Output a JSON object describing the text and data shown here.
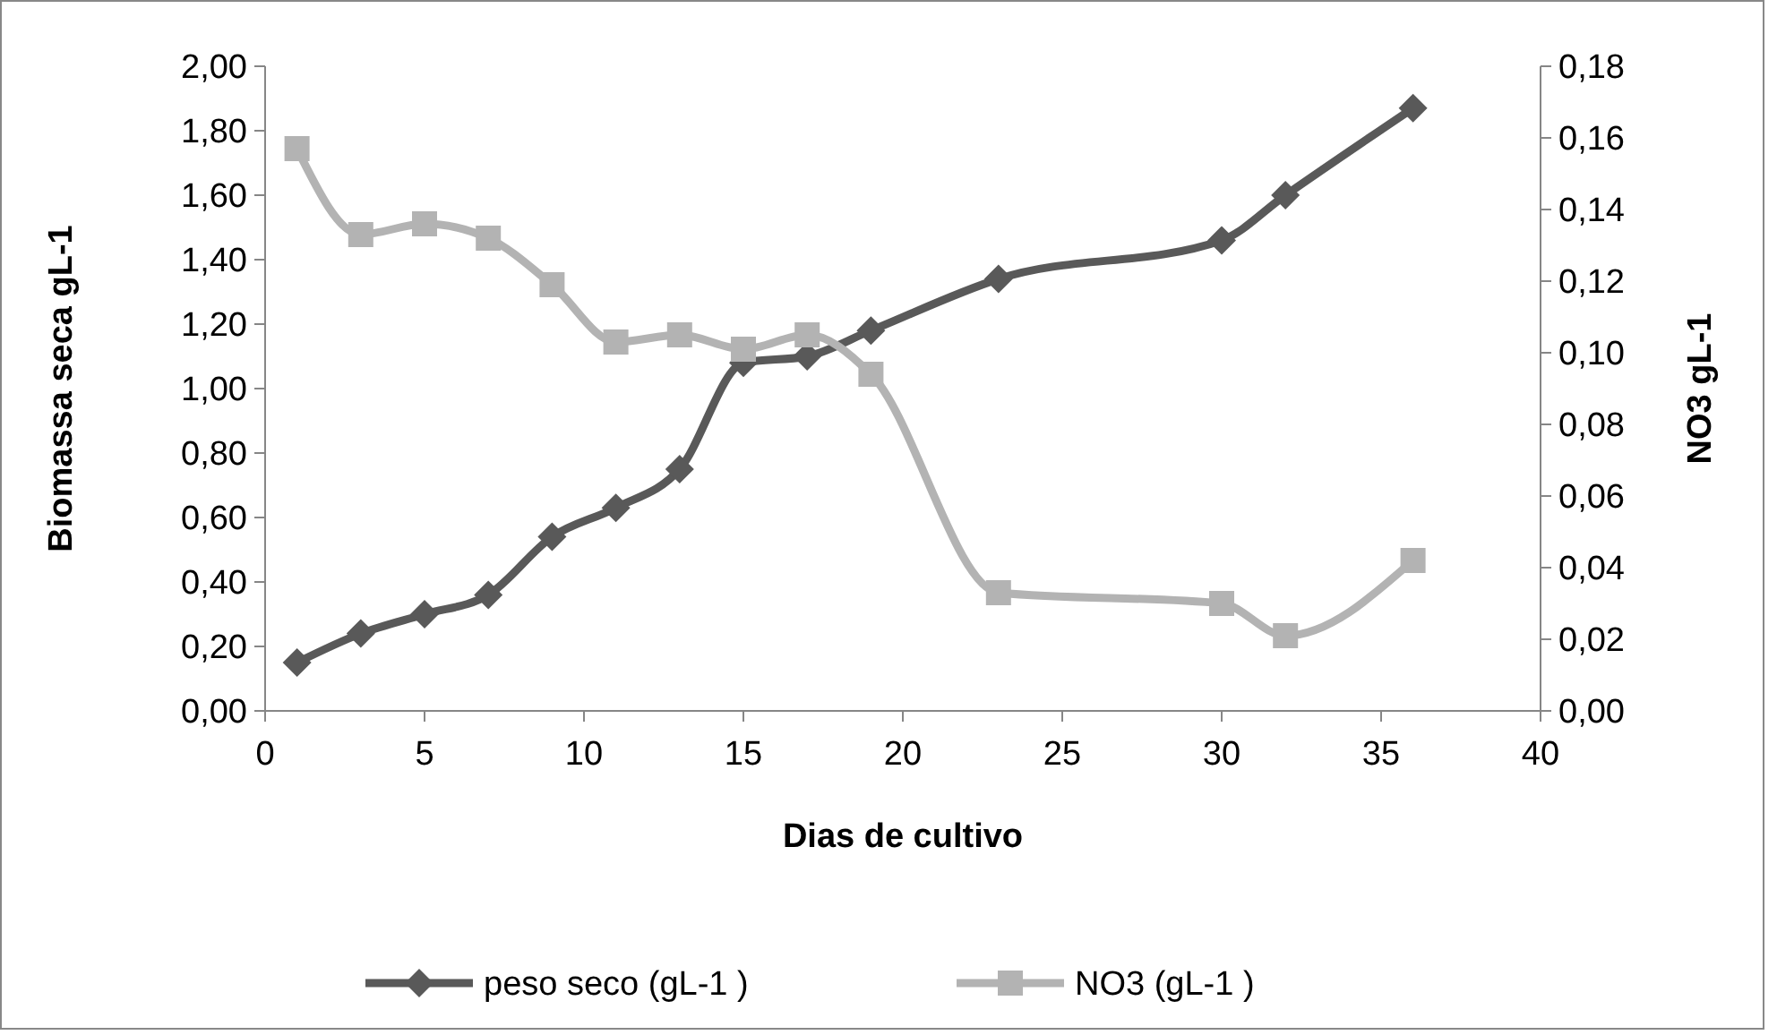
{
  "chart_data": {
    "type": "line",
    "xlabel": "Dias de cultivo",
    "ylabel": "Biomassa seca gL-1",
    "y2label": "NO3 gL-1",
    "xlim": [
      0,
      40
    ],
    "xticks": [
      0,
      5,
      10,
      15,
      20,
      25,
      30,
      35,
      40
    ],
    "ylim": [
      0,
      2
    ],
    "yticks": [
      {
        "value": 0,
        "label": "0,00"
      },
      {
        "value": 0.2,
        "label": "0,20"
      },
      {
        "value": 0.4,
        "label": "0,40"
      },
      {
        "value": 0.6,
        "label": "0,60"
      },
      {
        "value": 0.8,
        "label": "0,80"
      },
      {
        "value": 1,
        "label": "1,00"
      },
      {
        "value": 1.2,
        "label": "1,20"
      },
      {
        "value": 1.4,
        "label": "1,40"
      },
      {
        "value": 1.6,
        "label": "1,60"
      },
      {
        "value": 1.8,
        "label": "1,80"
      },
      {
        "value": 2,
        "label": "2,00"
      }
    ],
    "y2lim": [
      0,
      0.18
    ],
    "y2ticks": [
      {
        "value": 0,
        "label": "0,00"
      },
      {
        "value": 0.02,
        "label": "0,02"
      },
      {
        "value": 0.04,
        "label": "0,04"
      },
      {
        "value": 0.06,
        "label": "0,06"
      },
      {
        "value": 0.08,
        "label": "0,08"
      },
      {
        "value": 0.1,
        "label": "0,10"
      },
      {
        "value": 0.12,
        "label": "0,12"
      },
      {
        "value": 0.14,
        "label": "0,14"
      },
      {
        "value": 0.16,
        "label": "0,16"
      },
      {
        "value": 0.18,
        "label": "0,18"
      }
    ],
    "grid": false,
    "legend": "bottom",
    "series": [
      {
        "name": "peso seco (gL-1 )",
        "color": "#595959",
        "marker": "diamond",
        "x": [
          1,
          3,
          5,
          7,
          9,
          11,
          13,
          15,
          17,
          19,
          23,
          30,
          32,
          36
        ],
        "values": [
          0.15,
          0.24,
          0.3,
          0.36,
          0.54,
          0.63,
          0.75,
          1.08,
          1.1,
          1.18,
          1.34,
          1.46,
          1.6,
          1.87
        ]
      },
      {
        "name": "NO3 (gL-1 )",
        "color": "#b3b3b3",
        "marker": "square",
        "axis": "y2",
        "x": [
          1,
          3,
          5,
          7,
          9,
          11,
          13,
          15,
          17,
          19,
          23,
          30,
          32,
          36
        ],
        "values": [
          0.157,
          0.133,
          0.136,
          0.132,
          0.119,
          0.103,
          0.105,
          0.101,
          0.105,
          0.094,
          0.033,
          0.03,
          0.021,
          0.042
        ]
      }
    ]
  }
}
